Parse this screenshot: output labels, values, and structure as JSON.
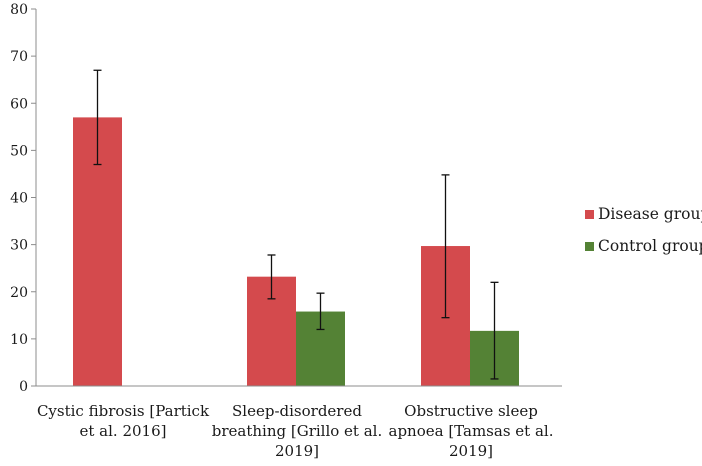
{
  "chart_data": {
    "type": "bar",
    "title": "",
    "xlabel": "",
    "ylabel": "",
    "ylim": [
      0,
      80
    ],
    "yticks": [
      0,
      10,
      20,
      30,
      40,
      50,
      60,
      70,
      80
    ],
    "grid": false,
    "legend_position": "right",
    "categories": [
      [
        "Cystic fibrosis [Partick",
        "et al. 2016]"
      ],
      [
        "Sleep-disordered",
        "breathing [Grillo et al.",
        "2019]"
      ],
      [
        "Obstructive sleep",
        "apnoea [Tamsas et al.",
        "2019]"
      ]
    ],
    "series": [
      {
        "name": "Disease group",
        "color": "#d44a4d",
        "values": [
          57,
          23.2,
          29.7
        ],
        "error_low": [
          47,
          18.5,
          14.5
        ],
        "error_high": [
          67,
          27.8,
          44.8
        ]
      },
      {
        "name": "Control group",
        "color": "#548235",
        "values": [
          null,
          15.8,
          11.7
        ],
        "error_low": [
          null,
          12.0,
          1.5
        ],
        "error_high": [
          null,
          19.7,
          22.0
        ]
      }
    ]
  }
}
